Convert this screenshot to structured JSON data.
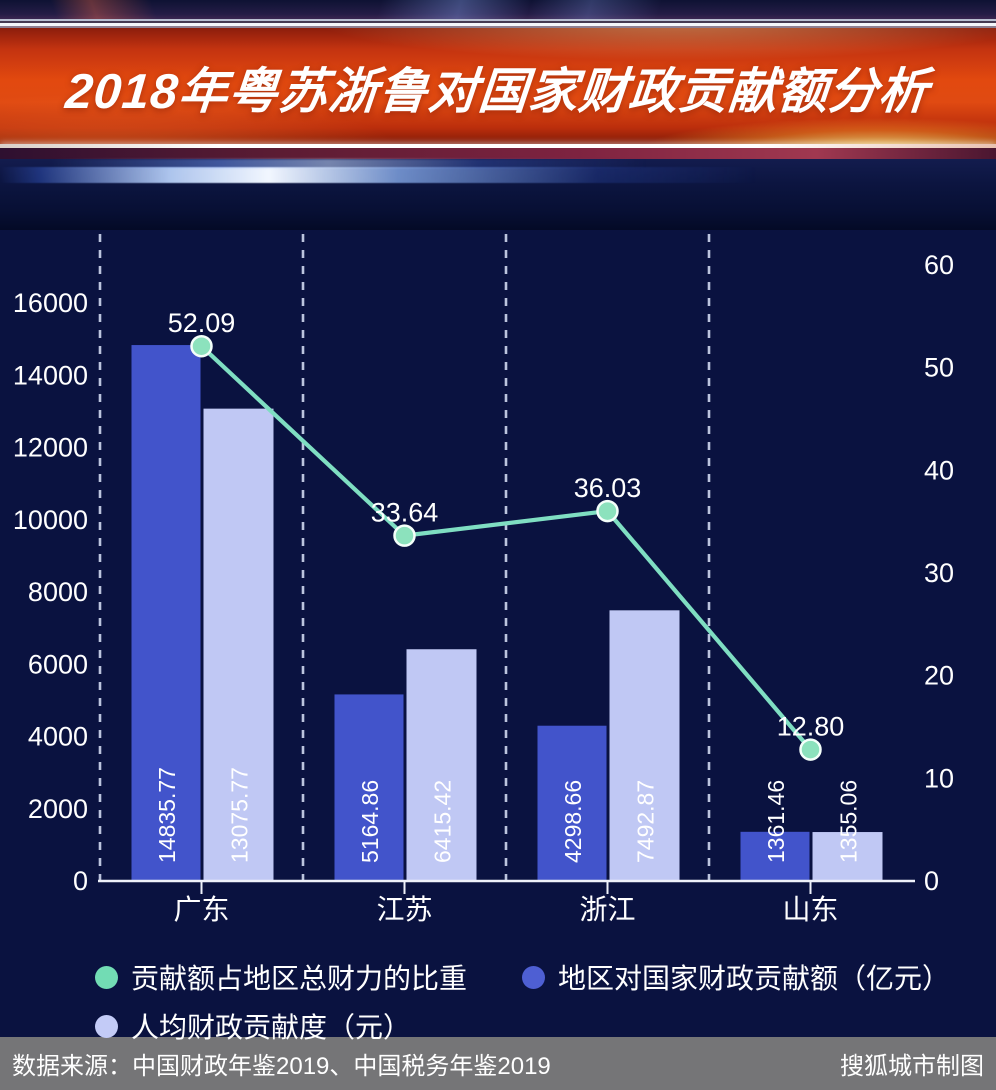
{
  "header": {
    "title": "2018年粤苏浙鲁对国家财政贡献额分析",
    "banner_red": "#e2490f",
    "banner_navy": "#0c1540"
  },
  "chart_data": {
    "type": "bar",
    "subtype": "combo-bar-line",
    "categories": [
      "广东",
      "江苏",
      "浙江",
      "山东"
    ],
    "series": [
      {
        "name": "地区对国家财政贡献额（亿元）",
        "type": "bar",
        "axis": "left",
        "color": "#4254cb",
        "values": [
          14835.77,
          5164.86,
          4298.66,
          1361.46
        ]
      },
      {
        "name": "人均财政贡献度（元）",
        "type": "bar",
        "axis": "left",
        "color": "#c0c8f4",
        "values": [
          13075.77,
          6415.42,
          7492.87,
          1355.06
        ]
      },
      {
        "name": "贡献额占地区总财力的比重",
        "type": "line",
        "axis": "right",
        "color": "#7fdec2",
        "marker_color": "#8ce2bd",
        "values": [
          52.09,
          33.64,
          36.03,
          12.8
        ]
      }
    ],
    "title": "2018年粤苏浙鲁对国家财政贡献额分析",
    "xlabel": "",
    "ylabel_left": "",
    "ylabel_right": "",
    "left_axis": {
      "min": 0,
      "max": 16000,
      "ticks": [
        0,
        2000,
        4000,
        6000,
        8000,
        10000,
        12000,
        14000,
        16000
      ]
    },
    "right_axis": {
      "min": 0,
      "max": 60,
      "ticks": [
        0,
        10,
        20,
        30,
        40,
        50,
        60
      ]
    },
    "grid": "vertical-dashed",
    "background": "#0a1240",
    "text_color": "#ffffff",
    "legend_position": "bottom"
  },
  "legend": {
    "items": [
      {
        "label": "贡献额占地区总财力的比重",
        "color": "#72dcb4"
      },
      {
        "label": "地区对国家财政贡献额（亿元）",
        "color": "#4e5fd3"
      },
      {
        "label": "人均财政贡献度（元）",
        "color": "#c3cbf7"
      }
    ]
  },
  "footer": {
    "source": "数据来源：中国财政年鉴2019、中国税务年鉴2019",
    "credit": "搜狐城市制图"
  }
}
